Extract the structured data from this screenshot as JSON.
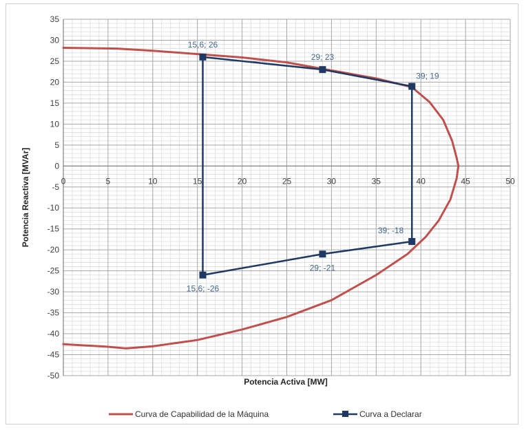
{
  "chart_data": {
    "type": "line",
    "title": "",
    "xlabel": "Potencia Activa [MW]",
    "ylabel": "Potencia Reactiva [MVAr]",
    "xlim": [
      0,
      50
    ],
    "ylim": [
      -50,
      35
    ],
    "x_ticks": [
      "0",
      "5",
      "10",
      "15",
      "20",
      "25",
      "30",
      "35",
      "40",
      "45",
      "50"
    ],
    "y_ticks": [
      "35",
      "30",
      "25",
      "20",
      "15",
      "10",
      "5",
      "0",
      "-5",
      "-10",
      "-15",
      "-20",
      "-25",
      "-30",
      "-35",
      "-40",
      "-45",
      "-50"
    ],
    "grid": true,
    "minor_grid": true,
    "legend_position": "bottom",
    "series": [
      {
        "name": "Curva de Capabilidad de la Máquina",
        "color": "#c0504d",
        "marker": "none",
        "points": [
          [
            0,
            28.2
          ],
          [
            6,
            28
          ],
          [
            10,
            27.5
          ],
          [
            15,
            26.7
          ],
          [
            20,
            25.9
          ],
          [
            25,
            24.7
          ],
          [
            30,
            22.8
          ],
          [
            35,
            20.9
          ],
          [
            39,
            18.8
          ],
          [
            41,
            15.2
          ],
          [
            42.5,
            11
          ],
          [
            43.5,
            6
          ],
          [
            44,
            2
          ],
          [
            44.2,
            0
          ],
          [
            44,
            -3
          ],
          [
            43.3,
            -8
          ],
          [
            42,
            -13
          ],
          [
            40.5,
            -17
          ],
          [
            38.5,
            -21
          ],
          [
            35,
            -26
          ],
          [
            30,
            -32
          ],
          [
            25,
            -36
          ],
          [
            20,
            -39
          ],
          [
            15,
            -41.5
          ],
          [
            10,
            -43
          ],
          [
            7,
            -43.5
          ],
          [
            5,
            -43.1
          ],
          [
            0,
            -42.5
          ]
        ]
      },
      {
        "name": "Curva a Declarar",
        "color": "#1f3864",
        "marker": "square",
        "points": [
          [
            15.6,
            26
          ],
          [
            29,
            23
          ],
          [
            39,
            19
          ],
          [
            39,
            -18
          ],
          [
            29,
            -21
          ],
          [
            15.6,
            -26
          ],
          [
            15.6,
            26
          ]
        ]
      }
    ],
    "annotations": [
      {
        "text": "15,6; 26",
        "x": 15.6,
        "y": 26,
        "pos": "above"
      },
      {
        "text": "29; 23",
        "x": 29,
        "y": 23,
        "pos": "above"
      },
      {
        "text": "39; 19",
        "x": 39,
        "y": 19,
        "pos": "above-right"
      },
      {
        "text": "39; -18",
        "x": 39,
        "y": -18,
        "pos": "left"
      },
      {
        "text": "29; -21",
        "x": 29,
        "y": -21,
        "pos": "below"
      },
      {
        "text": "15,6; -26",
        "x": 15.6,
        "y": -26,
        "pos": "below"
      }
    ]
  }
}
